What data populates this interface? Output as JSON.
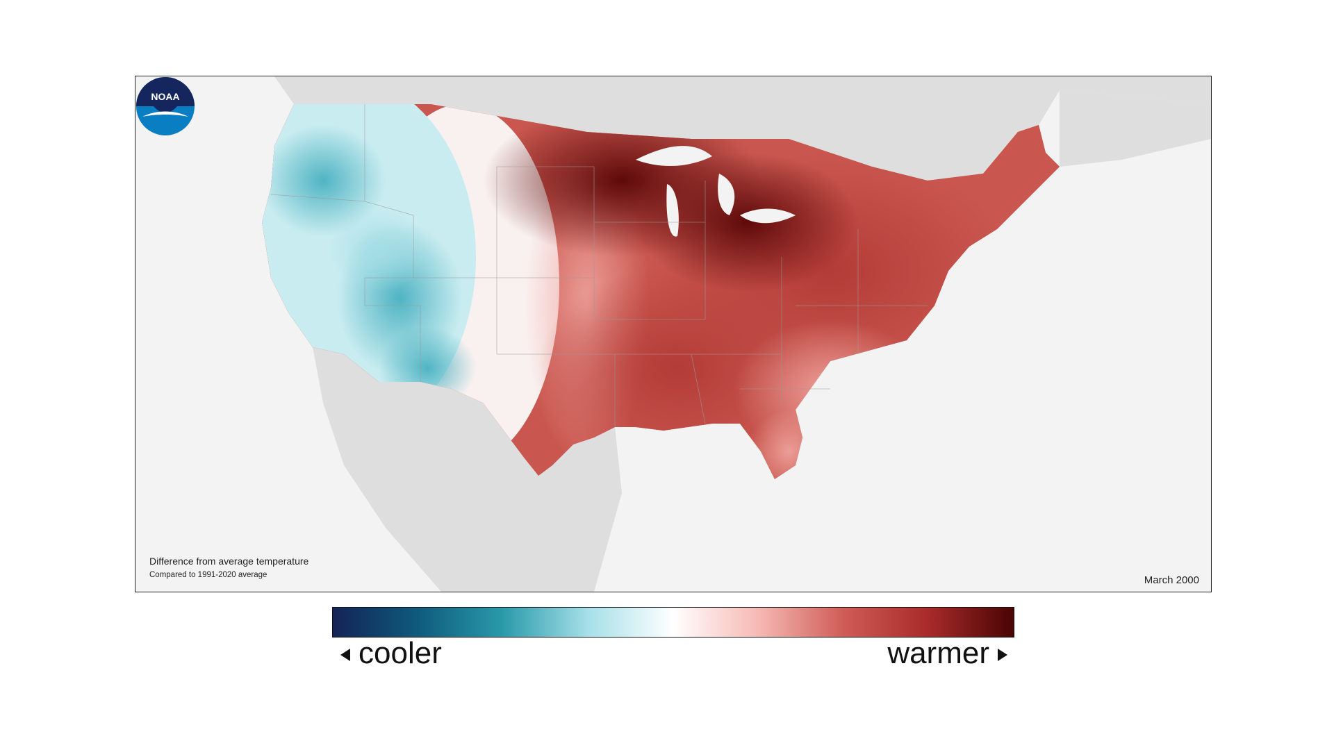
{
  "map": {
    "caption_title": "Difference from average temperature",
    "caption_subtitle": "Compared to 1991-2020 average",
    "date": "March 2000",
    "logo_text": "NOAA"
  },
  "legend": {
    "left_label": "cooler",
    "right_label": "warmer",
    "gradient_colors": [
      "#142356",
      "#0e5b7d",
      "#2a9aaa",
      "#a6e0e8",
      "#ffffff",
      "#f6b9b4",
      "#cf5c57",
      "#a82a2a",
      "#4a0404"
    ]
  },
  "colors": {
    "background_land": "#dedede",
    "ocean": "#f3f3f3",
    "cool_anomaly": "#3aaabb",
    "warm_anomaly": "#b33a36",
    "extreme_warm": "#5e0a0a"
  }
}
